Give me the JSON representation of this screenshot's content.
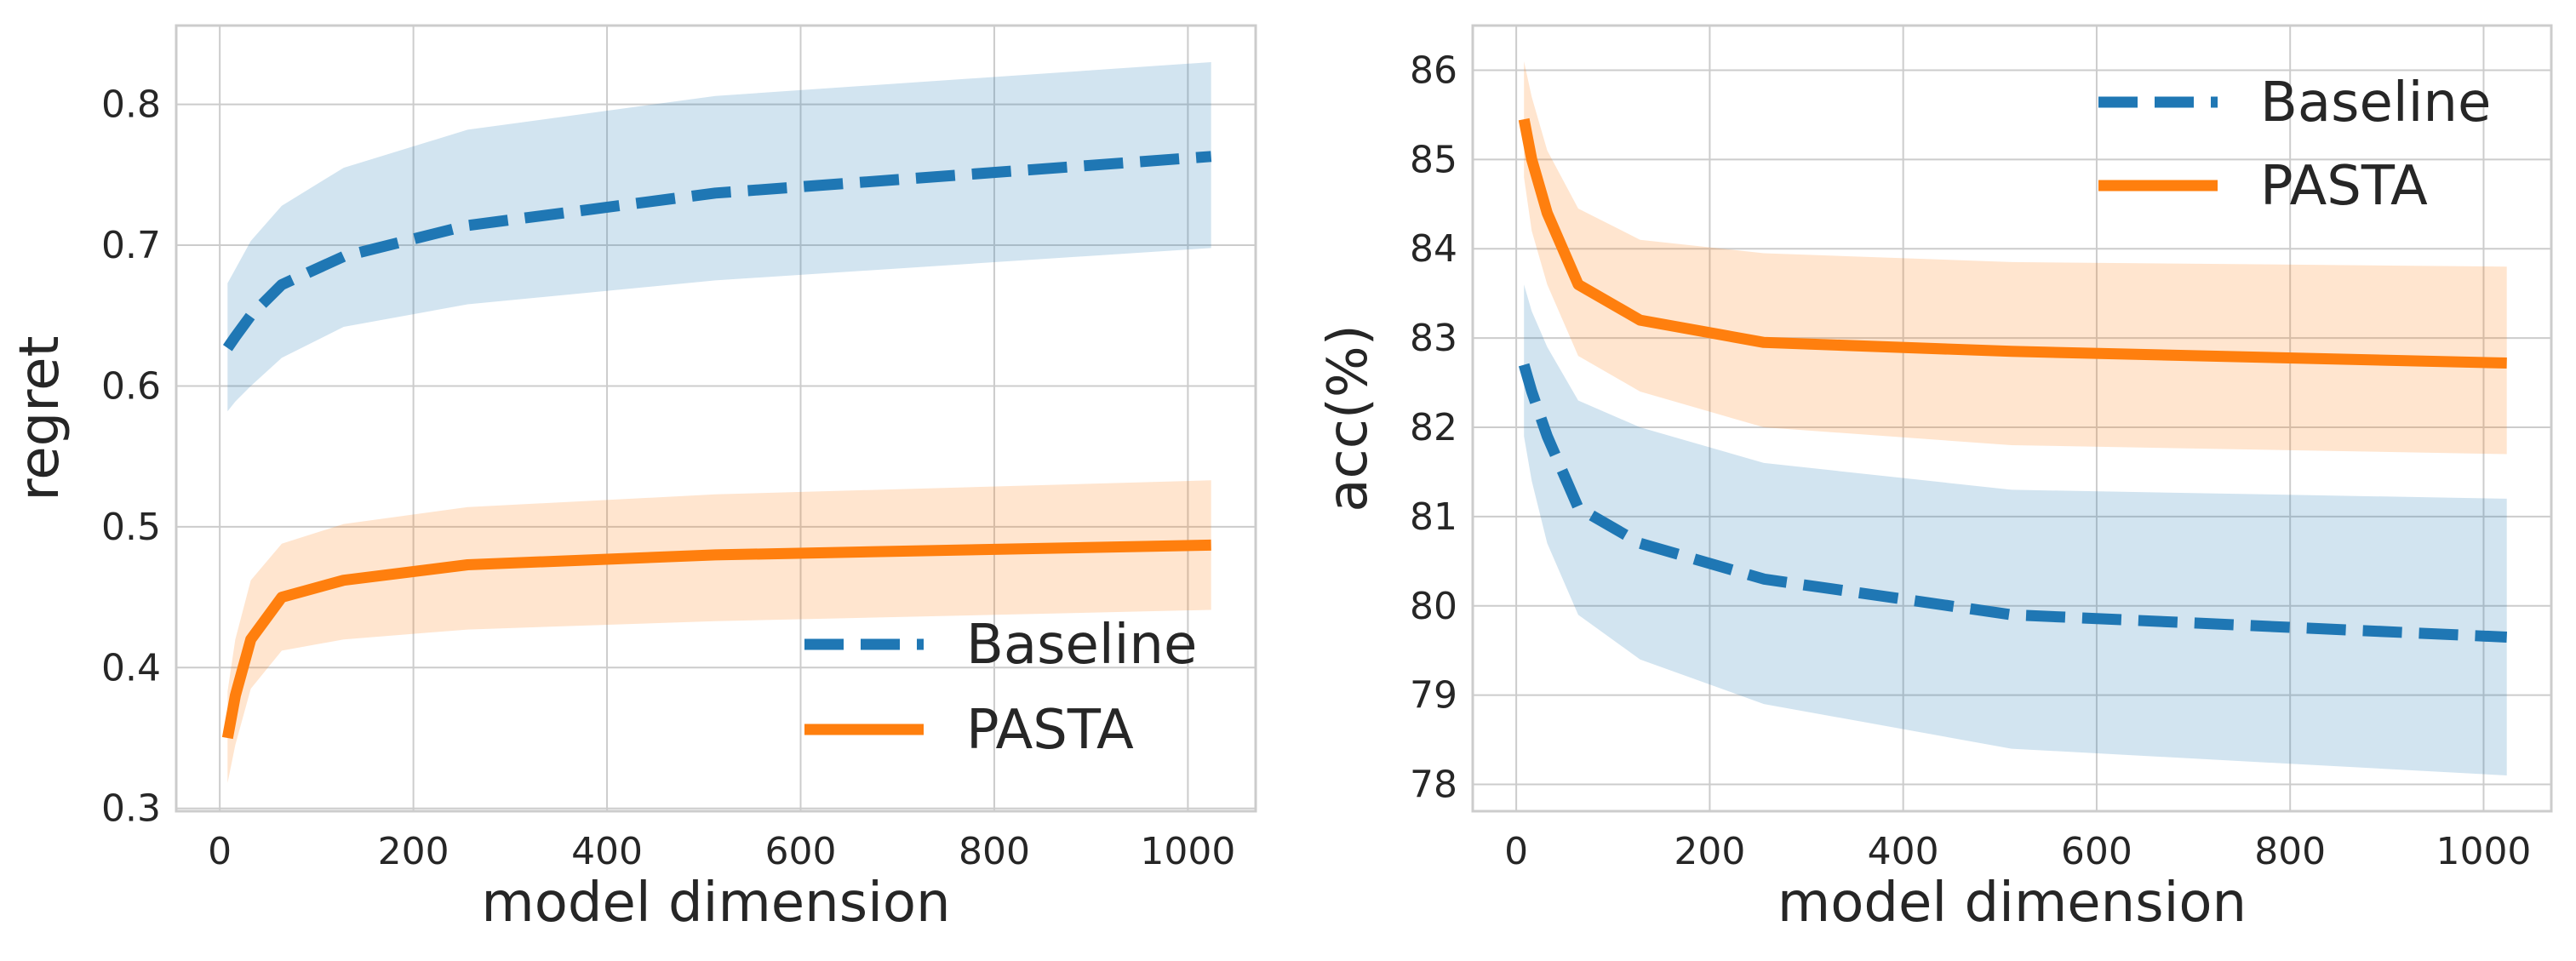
{
  "chart_data": [
    {
      "type": "line",
      "xlabel": "model dimension",
      "ylabel": "regret",
      "xlim": [
        -45,
        1070
      ],
      "ylim": [
        0.298,
        0.856
      ],
      "xticks": [
        0,
        200,
        400,
        600,
        800,
        1000
      ],
      "xtick_labels": [
        "0",
        "200",
        "400",
        "600",
        "800",
        "1000"
      ],
      "yticks": [
        0.3,
        0.4,
        0.5,
        0.6,
        0.7,
        0.8
      ],
      "ytick_labels": [
        "0.3",
        "0.4",
        "0.5",
        "0.6",
        "0.7",
        "0.8"
      ],
      "grid": true,
      "legend_position": "lower-right",
      "x": [
        8,
        16,
        32,
        64,
        128,
        256,
        512,
        1024
      ],
      "series": [
        {
          "name": "Baseline",
          "color": "#1f77b4",
          "dashed": true,
          "values": [
            0.627,
            0.635,
            0.65,
            0.672,
            0.692,
            0.714,
            0.737,
            0.763
          ],
          "lower": [
            0.582,
            0.589,
            0.6,
            0.62,
            0.642,
            0.658,
            0.675,
            0.698
          ],
          "upper": [
            0.673,
            0.683,
            0.703,
            0.728,
            0.755,
            0.782,
            0.806,
            0.83
          ]
        },
        {
          "name": "PASTA",
          "color": "#ff7f0e",
          "dashed": false,
          "values": [
            0.35,
            0.38,
            0.42,
            0.45,
            0.462,
            0.473,
            0.48,
            0.487
          ],
          "lower": [
            0.318,
            0.345,
            0.385,
            0.412,
            0.42,
            0.427,
            0.433,
            0.441
          ],
          "upper": [
            0.383,
            0.42,
            0.462,
            0.488,
            0.502,
            0.514,
            0.523,
            0.533
          ]
        }
      ]
    },
    {
      "type": "line",
      "xlabel": "model dimension",
      "ylabel": "acc(%)",
      "xlim": [
        -45,
        1070
      ],
      "ylim": [
        77.7,
        86.5
      ],
      "xticks": [
        0,
        200,
        400,
        600,
        800,
        1000
      ],
      "xtick_labels": [
        "0",
        "200",
        "400",
        "600",
        "800",
        "1000"
      ],
      "yticks": [
        78,
        79,
        80,
        81,
        82,
        83,
        84,
        85,
        86
      ],
      "ytick_labels": [
        "78",
        "79",
        "80",
        "81",
        "82",
        "83",
        "84",
        "85",
        "86"
      ],
      "grid": true,
      "legend_position": "upper-right",
      "x": [
        8,
        16,
        32,
        64,
        128,
        256,
        512,
        1024
      ],
      "series": [
        {
          "name": "Baseline",
          "color": "#1f77b4",
          "dashed": true,
          "values": [
            82.7,
            82.4,
            81.9,
            81.1,
            80.7,
            80.3,
            79.9,
            79.65
          ],
          "lower": [
            81.9,
            81.4,
            80.7,
            79.9,
            79.4,
            78.9,
            78.4,
            78.1
          ],
          "upper": [
            83.6,
            83.3,
            82.9,
            82.3,
            82.0,
            81.6,
            81.3,
            81.2
          ]
        },
        {
          "name": "PASTA",
          "color": "#ff7f0e",
          "dashed": false,
          "values": [
            85.45,
            85.0,
            84.4,
            83.6,
            83.2,
            82.95,
            82.85,
            82.72
          ],
          "lower": [
            84.8,
            84.2,
            83.6,
            82.8,
            82.4,
            82.0,
            81.8,
            81.7
          ],
          "upper": [
            86.1,
            85.7,
            85.1,
            84.45,
            84.1,
            83.95,
            83.85,
            83.8
          ]
        }
      ]
    }
  ]
}
